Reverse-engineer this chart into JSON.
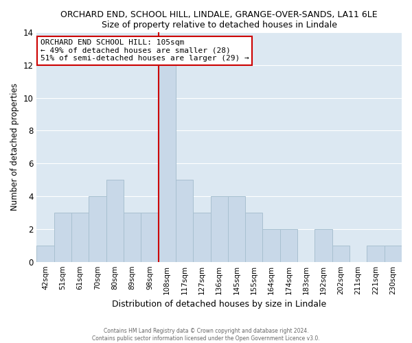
{
  "title": "ORCHARD END, SCHOOL HILL, LINDALE, GRANGE-OVER-SANDS, LA11 6LE",
  "subtitle": "Size of property relative to detached houses in Lindale",
  "xlabel": "Distribution of detached houses by size in Lindale",
  "ylabel": "Number of detached properties",
  "bar_labels": [
    "42sqm",
    "51sqm",
    "61sqm",
    "70sqm",
    "80sqm",
    "89sqm",
    "98sqm",
    "108sqm",
    "117sqm",
    "127sqm",
    "136sqm",
    "145sqm",
    "155sqm",
    "164sqm",
    "174sqm",
    "183sqm",
    "192sqm",
    "202sqm",
    "211sqm",
    "221sqm",
    "230sqm"
  ],
  "bar_values": [
    1,
    3,
    3,
    4,
    5,
    3,
    3,
    12,
    5,
    3,
    4,
    4,
    3,
    2,
    2,
    0,
    2,
    1,
    0,
    1,
    1
  ],
  "bar_color": "#c8d8e8",
  "bar_edge_color": "#a8c0d0",
  "vline_color": "#cc0000",
  "ylim": [
    0,
    14
  ],
  "yticks": [
    0,
    2,
    4,
    6,
    8,
    10,
    12,
    14
  ],
  "annotation_title": "ORCHARD END SCHOOL HILL: 105sqm",
  "annotation_line1": "← 49% of detached houses are smaller (28)",
  "annotation_line2": "51% of semi-detached houses are larger (29) →",
  "box_facecolor": "#ffffff",
  "box_edgecolor": "#cc0000",
  "footer1": "Contains HM Land Registry data © Crown copyright and database right 2024.",
  "footer2": "Contains public sector information licensed under the Open Government Licence v3.0.",
  "background_color": "#ffffff",
  "axes_facecolor": "#dce8f2",
  "grid_color": "#ffffff"
}
